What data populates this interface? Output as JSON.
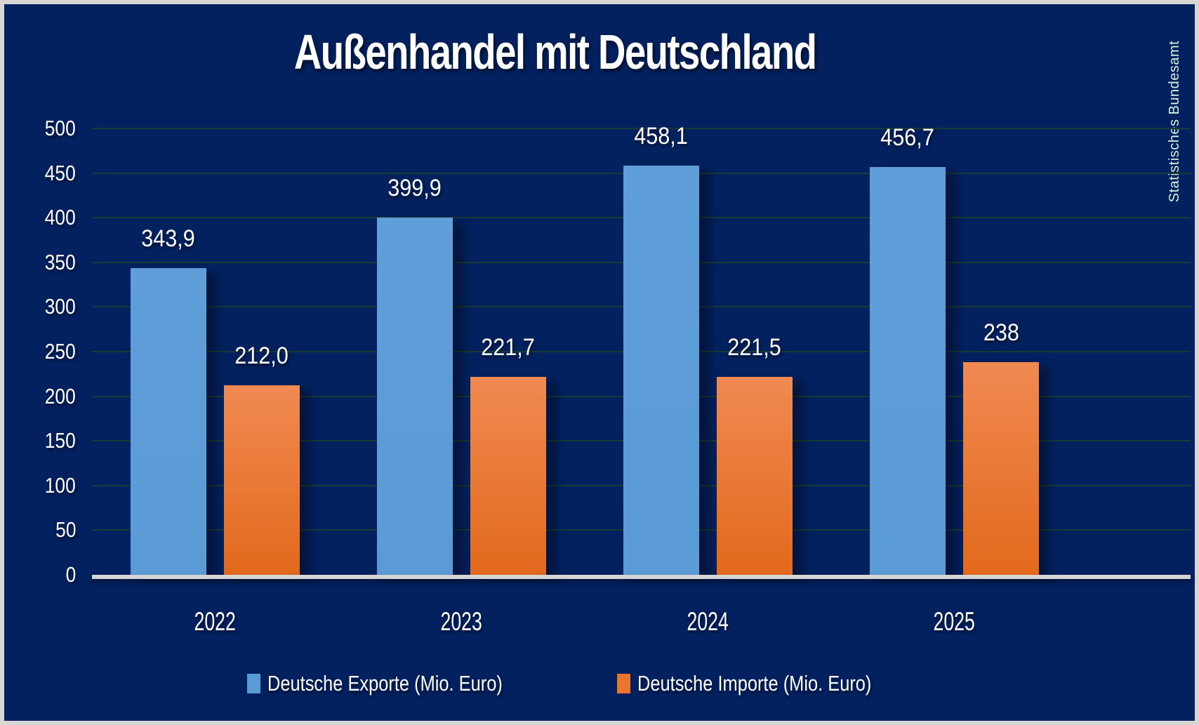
{
  "title": "Außenhandel mit Deutschland",
  "source_credit": "Statistisches Bundesamt",
  "colors": {
    "background": "#03215F",
    "frame": "#D8D5D5",
    "export_bar": "#5B9BD5",
    "import_bar_top": "#F08A52",
    "import_bar_bottom": "#E2691C",
    "gridline": "#1A3A35",
    "axis_line": "#D6D4D4",
    "text": "#FFFFFF",
    "source_text": "#D9F1DF"
  },
  "chart_data": {
    "type": "bar",
    "title": "Außenhandel mit Deutschland",
    "categories": [
      "2022",
      "2023",
      "2024",
      "2025"
    ],
    "series": [
      {
        "name": "Deutsche Exporte (Mio. Euro)",
        "values": [
          343.9,
          399.9,
          458.1,
          456.7
        ],
        "labels": [
          "343,9",
          "399,9",
          "458,1",
          "456,7"
        ],
        "color": "#5B9BD5"
      },
      {
        "name": "Deutsche Importe (Mio. Euro)",
        "values": [
          212.0,
          221.7,
          221.5,
          238
        ],
        "labels": [
          "212,0",
          "221,7",
          "221,5",
          "238"
        ],
        "color": "#ED7D31"
      }
    ],
    "ylabel": "",
    "xlabel": "",
    "ylim": [
      0,
      500
    ],
    "ytick_interval": 50,
    "yticks": [
      500,
      450,
      400,
      350,
      300,
      250,
      200,
      150,
      100,
      50,
      0
    ],
    "grid": true,
    "legend_position": "bottom"
  }
}
